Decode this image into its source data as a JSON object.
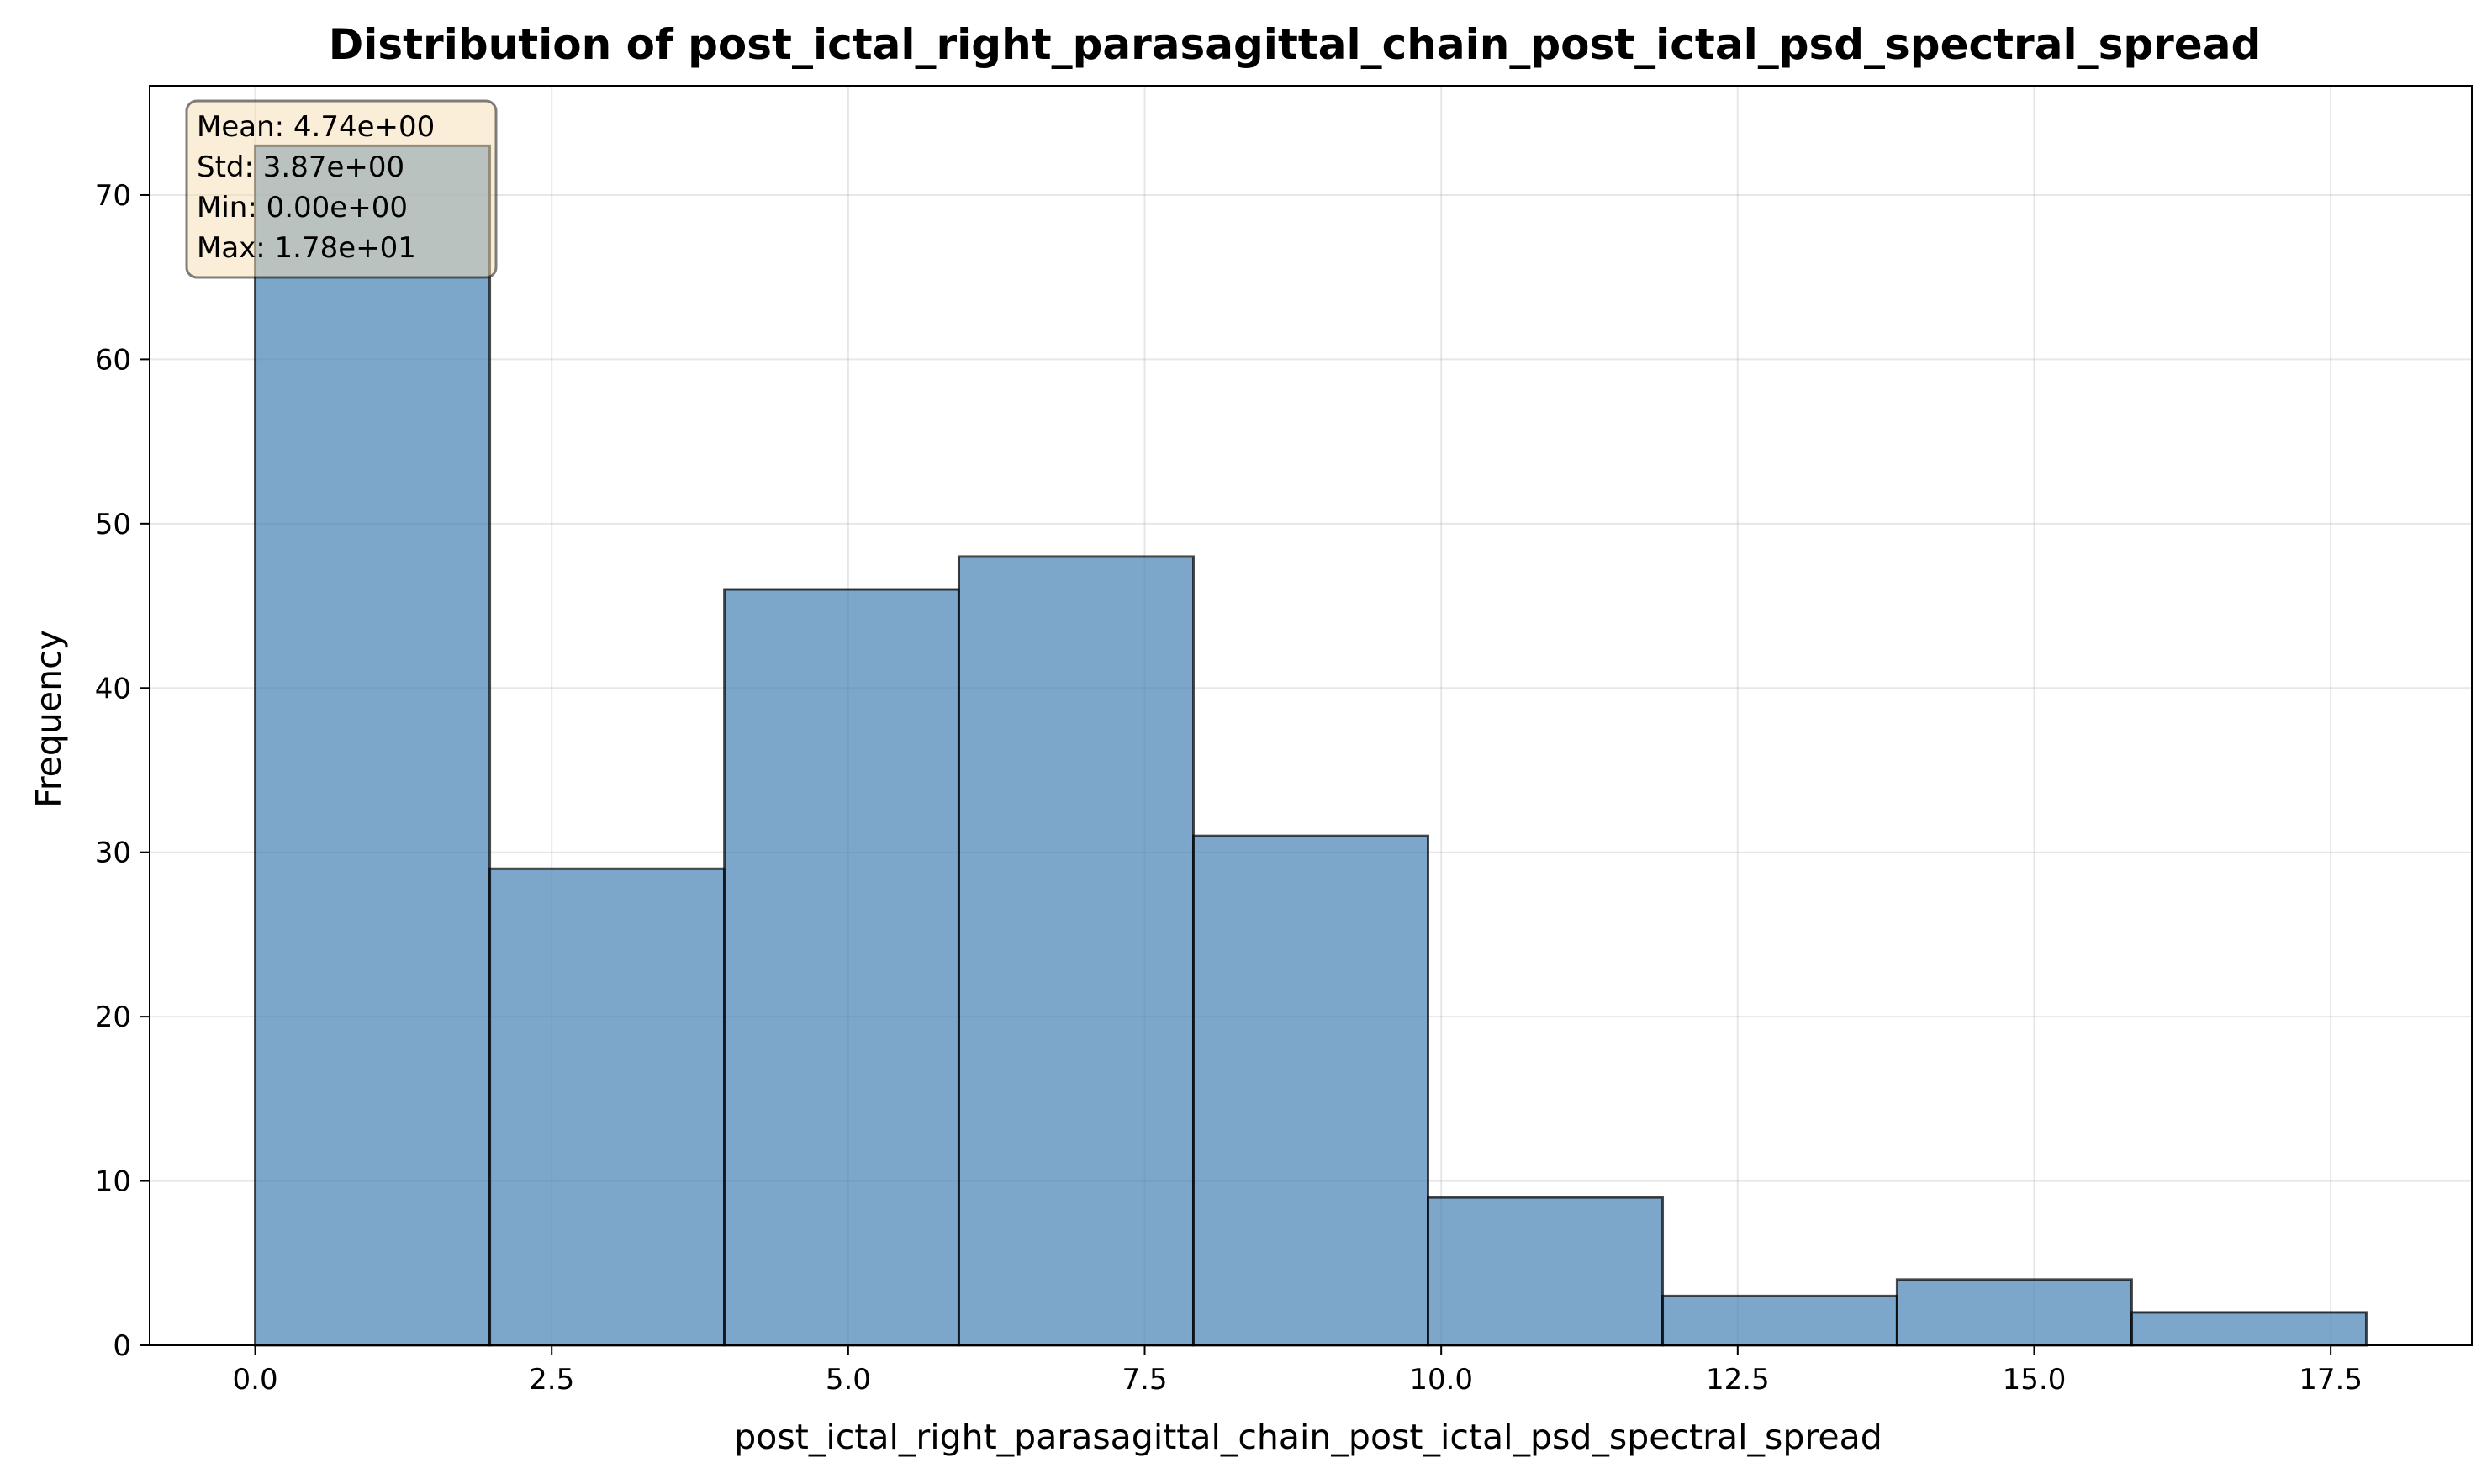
{
  "chart_data": {
    "type": "histogram",
    "title": "Distribution of post_ictal_right_parasagittal_chain_post_ictal_psd_spectral_spread",
    "xlabel": "post_ictal_right_parasagittal_chain_post_ictal_psd_spectral_spread",
    "ylabel": "Frequency",
    "bin_edges": [
      0.0,
      1.978,
      3.956,
      5.933,
      7.911,
      9.889,
      11.867,
      13.844,
      15.822,
      17.8
    ],
    "counts": [
      73,
      29,
      46,
      48,
      31,
      9,
      3,
      4,
      2
    ],
    "xlim": [
      -0.89,
      18.69
    ],
    "ylim": [
      0,
      76.65
    ],
    "xticks": [
      0.0,
      2.5,
      5.0,
      7.5,
      10.0,
      12.5,
      15.0,
      17.5
    ],
    "xtick_labels": [
      "0.0",
      "2.5",
      "5.0",
      "7.5",
      "10.0",
      "12.5",
      "15.0",
      "17.5"
    ],
    "yticks": [
      0,
      10,
      20,
      30,
      40,
      50,
      60,
      70
    ],
    "ytick_labels": [
      "0",
      "10",
      "20",
      "30",
      "40",
      "50",
      "60",
      "70"
    ],
    "grid": true,
    "bar_color": "#4682b4",
    "bar_edge_color": "#000000",
    "stats_box": {
      "lines": [
        "Mean: 4.74e+00",
        "Std: 3.87e+00",
        "Min: 0.00e+00",
        "Max: 1.78e+01"
      ],
      "background": "#f5deb3",
      "position": "top-left"
    }
  }
}
